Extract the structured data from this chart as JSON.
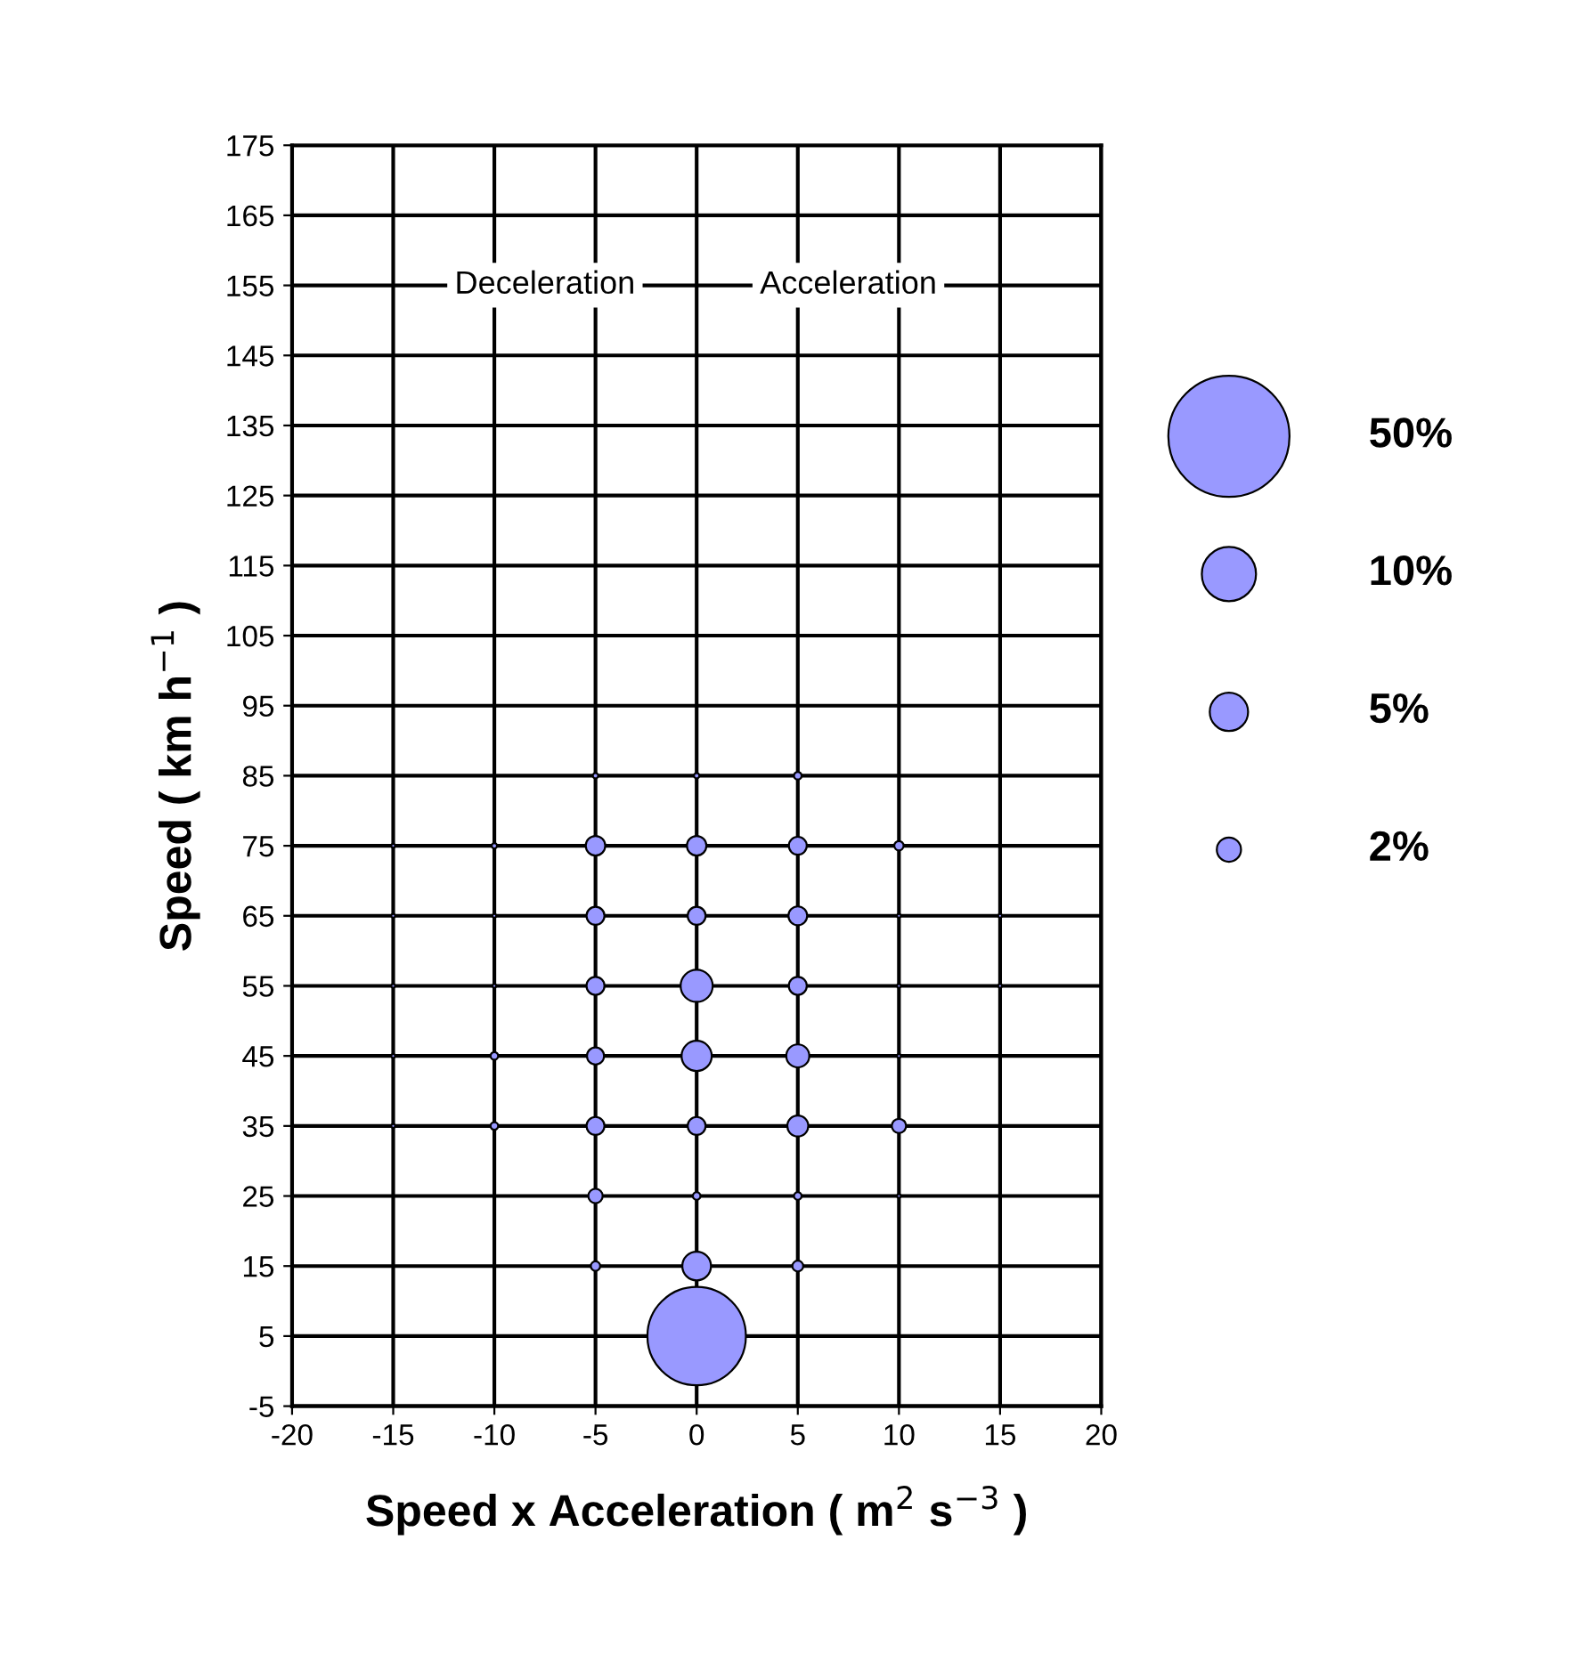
{
  "chart_data": {
    "type": "bubble",
    "xlabel": "Speed x Acceleration ( m$^{2}$ s$^{−3}$ )",
    "ylabel": "Speed ( km h$^{−1}$ )",
    "annotations": [
      "Deceleration",
      "Acceleration"
    ],
    "series": [
      {
        "color": "#9999ff",
        "x": [
          -5,
          0,
          5,
          -15,
          -10,
          -5,
          0,
          5,
          10,
          -15,
          -10,
          -5,
          0,
          5,
          10,
          15,
          -15,
          -10,
          -5,
          0,
          5,
          10,
          15,
          -15,
          -10,
          -5,
          0,
          5,
          10,
          -15,
          -10,
          -5,
          0,
          5,
          10,
          -5,
          0,
          5,
          10,
          -5,
          0,
          5,
          0
        ],
        "values": [
          85,
          85,
          85,
          75,
          75,
          75,
          75,
          75,
          75,
          65,
          65,
          65,
          65,
          65,
          65,
          65,
          55,
          55,
          55,
          55,
          55,
          55,
          55,
          45,
          45,
          45,
          45,
          45,
          45,
          35,
          35,
          35,
          35,
          35,
          35,
          25,
          25,
          25,
          25,
          15,
          15,
          15,
          5
        ],
        "sizes": [
          0.1,
          0.1,
          0.2,
          0.05,
          0.1,
          1.3,
          1.3,
          1.1,
          0.3,
          0.05,
          0.05,
          1.1,
          1.1,
          1.2,
          0.05,
          0.05,
          0.05,
          0.05,
          1.1,
          3.5,
          1.1,
          0.05,
          0.05,
          0.05,
          0.2,
          1.0,
          3.1,
          1.8,
          0.05,
          0.05,
          0.2,
          1.1,
          1.1,
          1.5,
          0.7,
          0.7,
          0.2,
          0.2,
          0.05,
          0.3,
          2.8,
          0.4,
          33
        ]
      }
    ],
    "size_legend": [
      {
        "value": 50,
        "label": "50%"
      },
      {
        "value": 10,
        "label": "10%"
      },
      {
        "value": 5,
        "label": "5%"
      },
      {
        "value": 2,
        "label": "2%"
      }
    ],
    "xlim": [
      -20,
      20
    ],
    "xticks": [
      -20,
      -15,
      -10,
      -5,
      0,
      5,
      10,
      15,
      20
    ],
    "ylim": [
      -5,
      175
    ],
    "yticks": [
      -5,
      5,
      15,
      25,
      35,
      45,
      55,
      65,
      75,
      85,
      95,
      105,
      115,
      125,
      135,
      145,
      155,
      165,
      175
    ],
    "grid": true
  }
}
